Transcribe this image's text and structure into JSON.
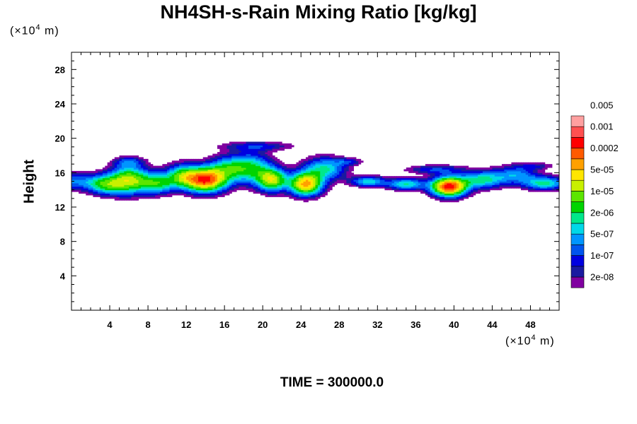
{
  "chart_data": {
    "type": "heatmap",
    "title": "NH4SH-s-Rain Mixing Ratio [kg/kg]",
    "ylabel": "Height",
    "y_unit": {
      "prefix": "(×10",
      "exp": "4",
      "suffix": " m)"
    },
    "x_unit": {
      "prefix": "(×10",
      "exp": "4",
      "suffix": " m)"
    },
    "xlim": [
      0,
      51
    ],
    "ylim": [
      0,
      30
    ],
    "x_ticks": [
      4,
      8,
      12,
      16,
      20,
      24,
      28,
      32,
      36,
      40,
      44,
      48
    ],
    "y_ticks": [
      4,
      8,
      12,
      16,
      20,
      24,
      28
    ],
    "time_label": "TIME = 300000.0",
    "colorbar": {
      "colors": [
        "#8000a0",
        "#1a1aa0",
        "#0000e0",
        "#0055ee",
        "#0095ff",
        "#00d8e8",
        "#00e88a",
        "#00d400",
        "#5ce600",
        "#c8f000",
        "#ffe600",
        "#ffa000",
        "#ff5a00",
        "#ff0000",
        "#ff5050",
        "#ffa0a0"
      ],
      "labels": [
        "2e-08",
        "1e-07",
        "5e-07",
        "2e-06",
        "1e-05",
        "5e-05",
        "0.0002",
        "0.001",
        "0.005"
      ]
    },
    "features": [
      {
        "region": "main-cloud-band",
        "x_range": [
          0,
          51
        ],
        "height_range": [
          13,
          20
        ]
      },
      {
        "region": "peak-1",
        "x_center": 14,
        "height": 15,
        "level": "0.0002"
      },
      {
        "region": "peak-2",
        "x_center": 24.5,
        "height": 14.5,
        "level": "0.0002"
      },
      {
        "region": "peak-3",
        "x_center": 39.5,
        "height": 14.3,
        "level": "0.001"
      }
    ]
  }
}
